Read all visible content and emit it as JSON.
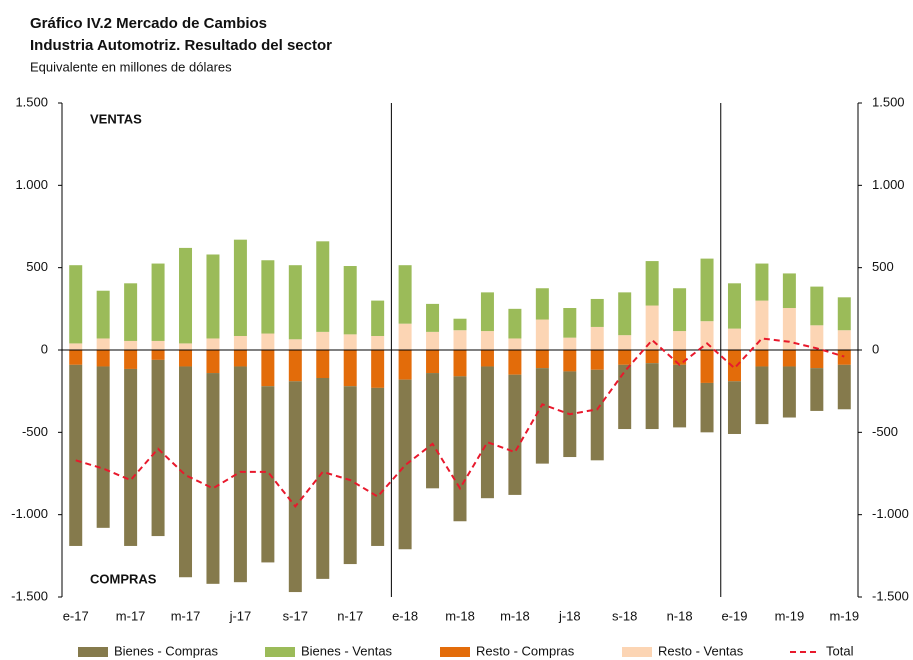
{
  "chart_data": {
    "type": "bar",
    "title": "Gráfico IV.2 Mercado de Cambios",
    "subtitle": "Industria Automotriz. Resultado del sector",
    "units_label": "Equivalente en millones de dólares",
    "annotations": [
      "VENTAS",
      "COMPRAS"
    ],
    "categories": [
      "e-17",
      null,
      "m-17",
      null,
      "m-17",
      null,
      "j-17",
      null,
      "s-17",
      null,
      "n-17",
      null,
      "e-18",
      null,
      "m-18",
      null,
      "m-18",
      null,
      "j-18",
      null,
      "s-18",
      null,
      "n-18",
      null,
      "e-19",
      null,
      "m-19",
      null,
      "m-19"
    ],
    "series": [
      {
        "name": "Bienes - Compras",
        "color": "#857a4c",
        "values": [
          -1100,
          -980,
          -1075,
          -1070,
          -1280,
          -1280,
          -1310,
          -1070,
          -1280,
          -1220,
          -1080,
          -960,
          -1030,
          -700,
          -880,
          -800,
          -730,
          -580,
          -520,
          -550,
          -390,
          -400,
          -380,
          -300,
          -320,
          -350,
          -310,
          -260,
          -270
        ]
      },
      {
        "name": "Bienes - Ventas",
        "color": "#9bbb59",
        "values": [
          475,
          290,
          350,
          470,
          580,
          510,
          585,
          445,
          450,
          550,
          415,
          215,
          355,
          170,
          70,
          235,
          180,
          190,
          180,
          170,
          260,
          270,
          260,
          380,
          275,
          225,
          210,
          235,
          200
        ]
      },
      {
        "name": "Resto - Compras",
        "color": "#e36c0a",
        "values": [
          -90,
          -100,
          -115,
          -60,
          -100,
          -140,
          -100,
          -220,
          -190,
          -170,
          -220,
          -230,
          -180,
          -140,
          -160,
          -100,
          -150,
          -110,
          -130,
          -120,
          -90,
          -80,
          -90,
          -200,
          -190,
          -100,
          -100,
          -110,
          -90
        ]
      },
      {
        "name": "Resto - Ventas",
        "color": "#fcd5b4",
        "values": [
          40,
          70,
          55,
          55,
          40,
          70,
          85,
          100,
          65,
          110,
          95,
          85,
          160,
          110,
          120,
          115,
          70,
          185,
          75,
          140,
          90,
          270,
          115,
          175,
          130,
          300,
          255,
          150,
          120
        ]
      },
      {
        "name": "Total",
        "color": "#e8192c",
        "type": "line",
        "values": [
          -670,
          -720,
          -790,
          -600,
          -760,
          -840,
          -740,
          -740,
          -950,
          -740,
          -790,
          -890,
          -700,
          -570,
          -840,
          -560,
          -620,
          -330,
          -390,
          -360,
          -130,
          60,
          -90,
          40,
          -110,
          70,
          50,
          10,
          -40
        ]
      }
    ],
    "ylim": [
      -1500,
      1500
    ],
    "yticks": [
      {
        "value": -1500,
        "label": "-1.500"
      },
      {
        "value": -1000,
        "label": "-1.000"
      },
      -500,
      0,
      500,
      {
        "value": 1000,
        "label": "1.000"
      },
      {
        "value": 1500,
        "label": "1.500"
      }
    ],
    "y2lim": [
      -1500,
      1500
    ],
    "y2ticks": [
      {
        "value": -1500,
        "label": "-1.500"
      },
      {
        "value": -1000,
        "label": "-1.000"
      },
      -500,
      0,
      500,
      {
        "value": 1000,
        "label": "1.000"
      },
      {
        "value": 1500,
        "label": "1.500"
      }
    ],
    "grid": false,
    "legend": "bottom"
  }
}
